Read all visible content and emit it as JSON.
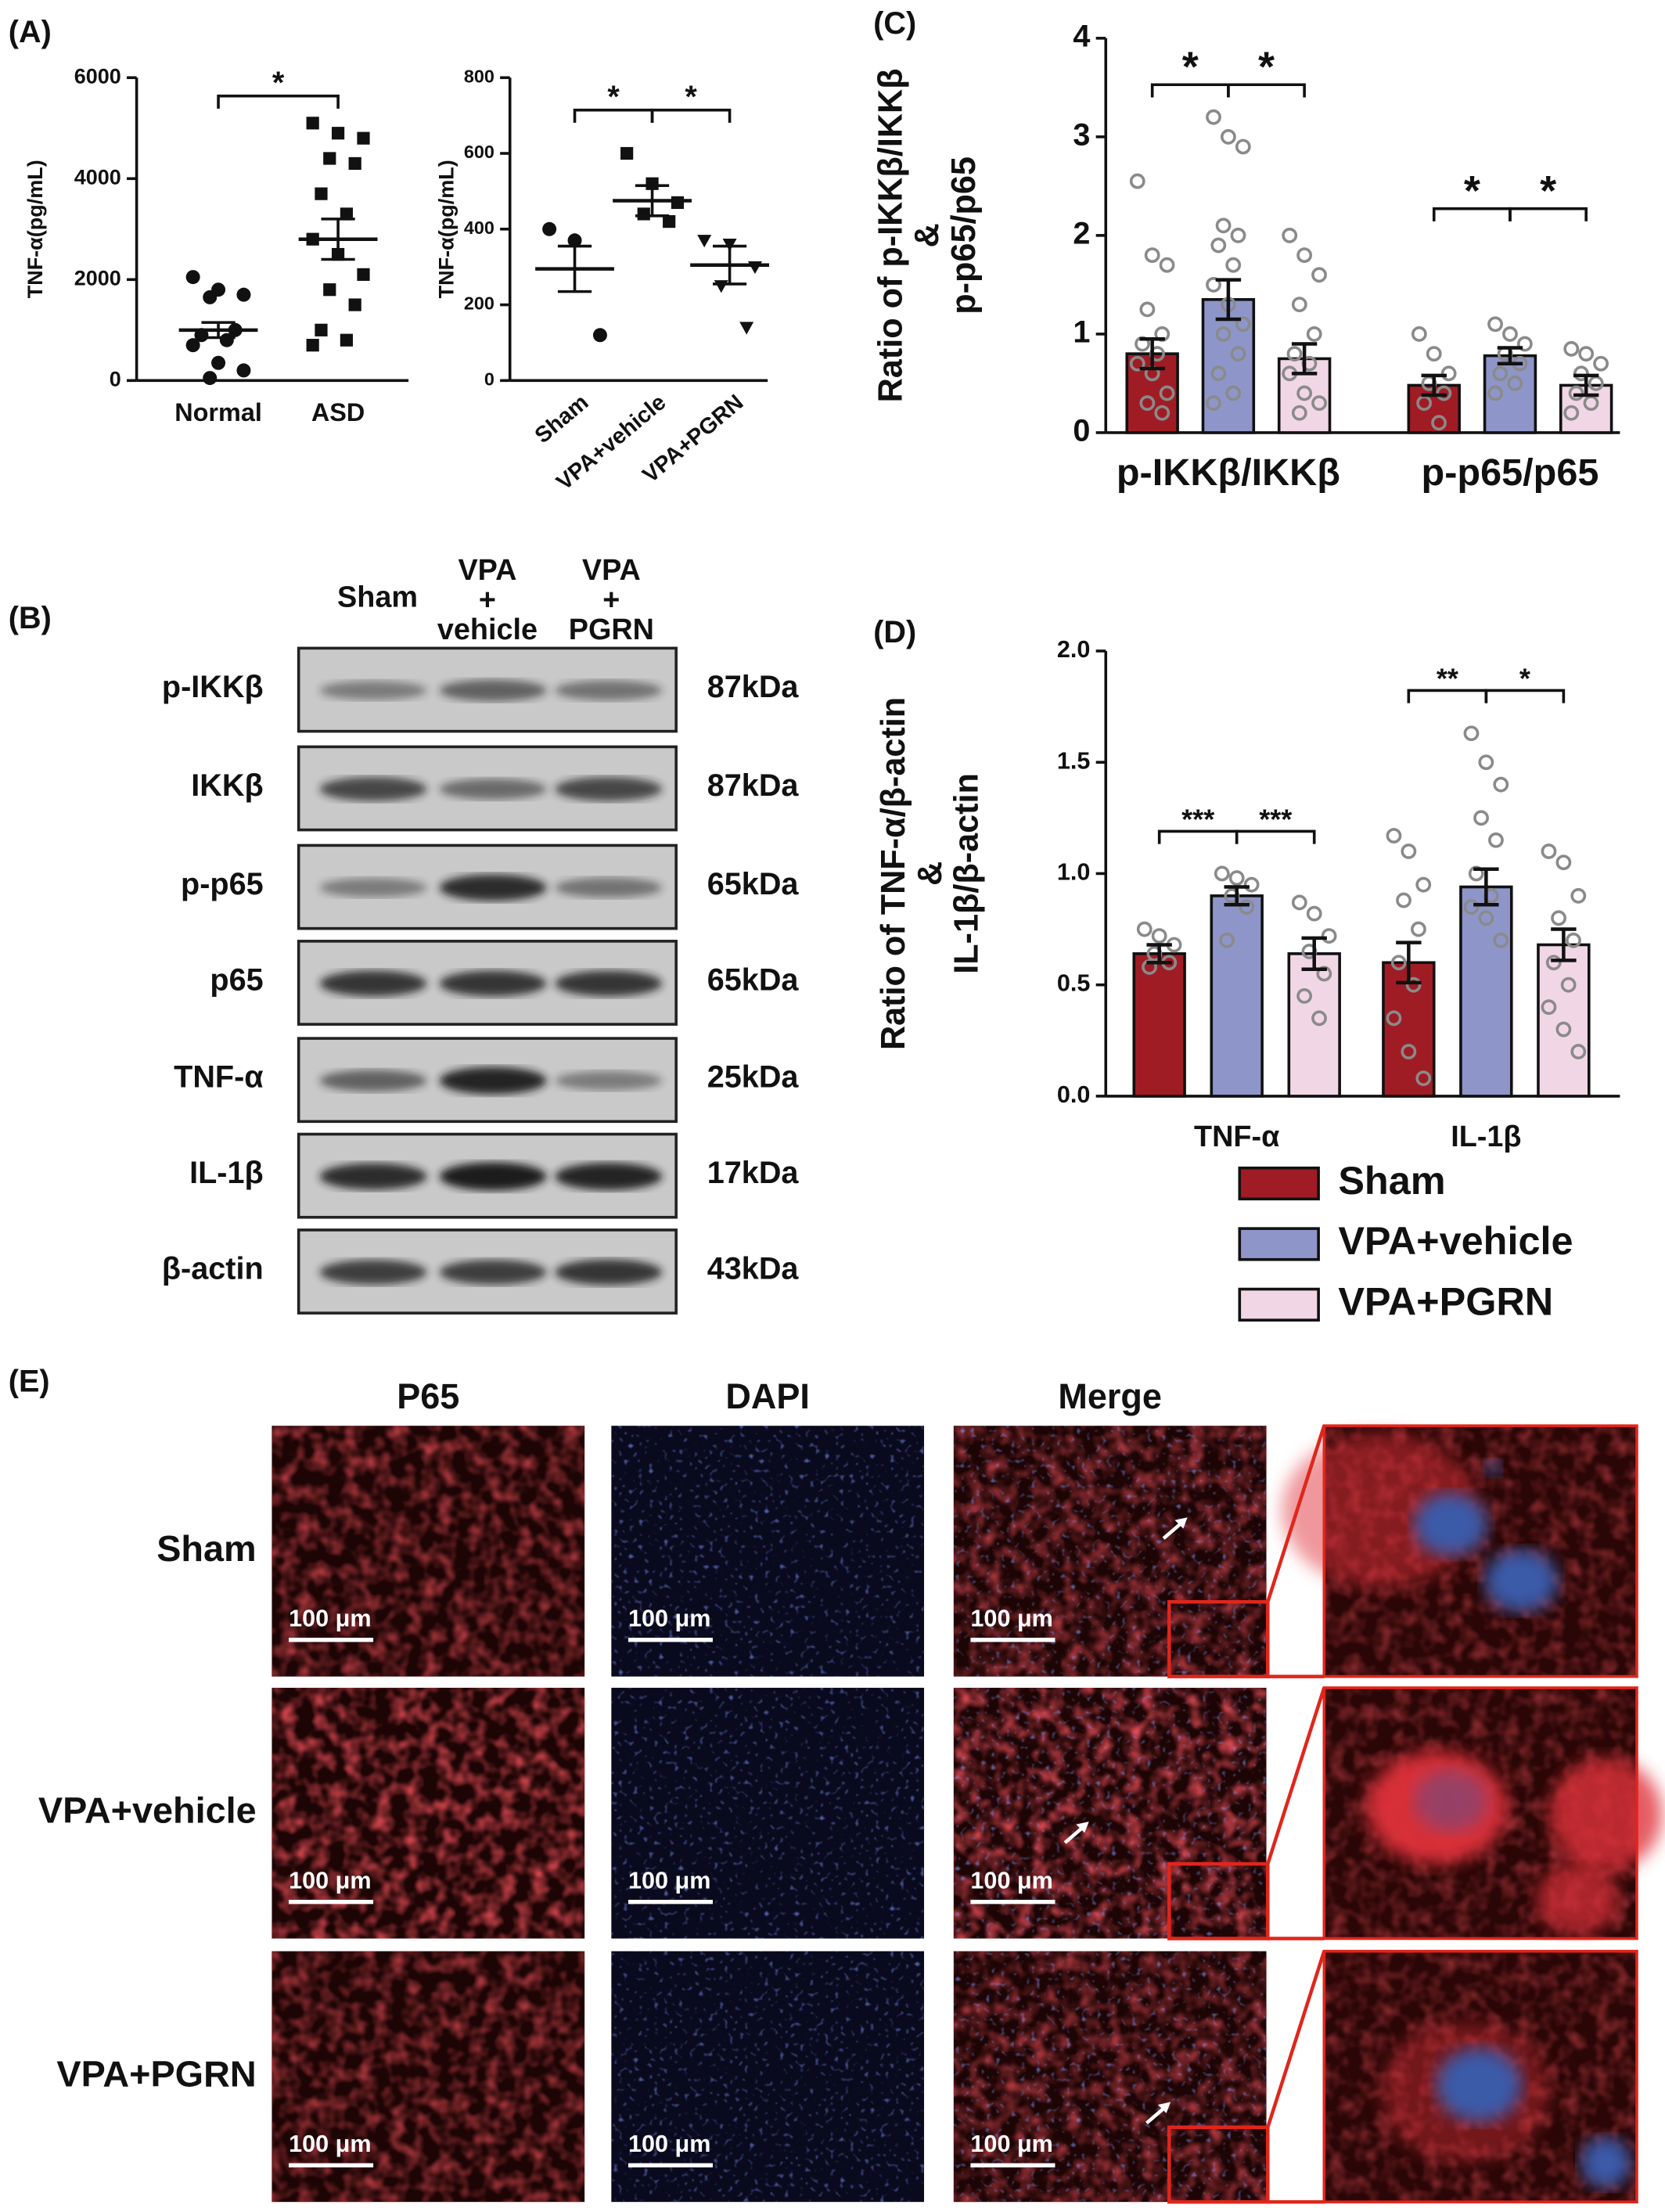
{
  "panel_labels": [
    "(A)",
    "(B)",
    "(C)",
    "(D)",
    "(E)"
  ],
  "chart_data": [
    {
      "type": "scatter",
      "ylabel": "TNF-α(pg/mL)",
      "categories": [
        "Normal",
        "ASD"
      ],
      "ylim": [
        0,
        6000
      ],
      "yticks": [
        0,
        2000,
        4000,
        6000
      ],
      "markers": [
        "circle",
        "square"
      ],
      "color": "#111111",
      "values": [
        1000,
        2800
      ],
      "errors": [
        150,
        400
      ],
      "points": [
        [
          2050,
          1800,
          1700,
          1650,
          1000,
          900,
          800,
          700,
          350,
          200,
          50
        ],
        [
          5100,
          4900,
          4800,
          4400,
          4300,
          3700,
          3300,
          2800,
          2500,
          2100,
          1800,
          1500,
          1000,
          800,
          700
        ]
      ],
      "comparisons": [
        {
          "label": "*",
          "between": [
            0,
            1
          ]
        }
      ]
    },
    {
      "type": "scatter",
      "ylabel": "TNF-α(pg/mL)",
      "categories": [
        "Sham",
        "VPA+vehicle",
        "VPA+PGRN"
      ],
      "ylim": [
        0,
        800
      ],
      "yticks": [
        0,
        200,
        400,
        600,
        800
      ],
      "markers": [
        "circle",
        "square",
        "triangle"
      ],
      "color": "#111111",
      "values": [
        295,
        475,
        305
      ],
      "errors": [
        60,
        40,
        50
      ],
      "points": [
        [
          400,
          370,
          120
        ],
        [
          600,
          520,
          470,
          440,
          420
        ],
        [
          370,
          360,
          300,
          250,
          140
        ]
      ],
      "comparisons": [
        {
          "label": "*",
          "between": [
            0,
            1
          ]
        },
        {
          "label": "*",
          "between": [
            1,
            2
          ]
        }
      ]
    },
    {
      "type": "bar",
      "ylabel": [
        "Ratio of p-IKKβ/IKKβ",
        "&",
        "p-p65/p65"
      ],
      "categories": [
        "p-IKKβ/IKKβ",
        "p-p65/p65"
      ],
      "ylim": [
        0,
        4
      ],
      "yticks": [
        0,
        1,
        2,
        3,
        4
      ],
      "point_color": "#8a8a8a",
      "series": [
        {
          "color": "#a01c24",
          "values": [
            0.8,
            0.48
          ],
          "errors": [
            0.15,
            0.1
          ],
          "points": [
            [
              2.55,
              1.8,
              1.7,
              1.25,
              1.0,
              0.9,
              0.8,
              0.7,
              0.6,
              0.4,
              0.3,
              0.2
            ],
            [
              1.0,
              0.8,
              0.6,
              0.5,
              0.4,
              0.3,
              0.1
            ]
          ]
        },
        {
          "color": "#8e96c9",
          "values": [
            1.35,
            0.78
          ],
          "errors": [
            0.2,
            0.08
          ],
          "points": [
            [
              3.2,
              3.0,
              2.9,
              2.1,
              2.0,
              1.9,
              1.7,
              1.5,
              1.3,
              1.1,
              1.0,
              0.8,
              0.6,
              0.4,
              0.3
            ],
            [
              1.1,
              1.0,
              0.9,
              0.8,
              0.7,
              0.6,
              0.5,
              0.4
            ]
          ]
        },
        {
          "color": "#f1d7e5",
          "values": [
            0.75,
            0.48
          ],
          "errors": [
            0.15,
            0.1
          ],
          "points": [
            [
              2.0,
              1.8,
              1.6,
              1.3,
              1.0,
              0.8,
              0.7,
              0.6,
              0.4,
              0.3,
              0.2
            ],
            [
              0.85,
              0.8,
              0.7,
              0.6,
              0.5,
              0.4,
              0.3,
              0.2
            ]
          ]
        }
      ],
      "comparisons": [
        {
          "label": "*",
          "category": 0,
          "between": [
            0,
            1
          ]
        },
        {
          "label": "*",
          "category": 0,
          "between": [
            1,
            2
          ]
        },
        {
          "label": "*",
          "category": 1,
          "between": [
            0,
            1
          ]
        },
        {
          "label": "*",
          "category": 1,
          "between": [
            1,
            2
          ]
        }
      ]
    },
    {
      "type": "bar",
      "ylabel": [
        "Ratio of TNF-α/β-actin",
        "&",
        "IL-1β/β-actin"
      ],
      "categories": [
        "TNF-α",
        "IL-1β"
      ],
      "ylim": [
        0,
        2
      ],
      "yticks": [
        {
          "value": 0,
          "label": "0.0"
        },
        0.5,
        {
          "value": 1,
          "label": "1.0"
        },
        1.5,
        {
          "value": 2,
          "label": "2.0"
        }
      ],
      "point_color": "#8a8a8a",
      "legend": "below",
      "series": [
        {
          "name": "Sham",
          "color": "#a01c24",
          "values": [
            0.64,
            0.6
          ],
          "errors": [
            0.04,
            0.09
          ],
          "points": [
            [
              0.75,
              0.72,
              0.68,
              0.64,
              0.6,
              0.58
            ],
            [
              1.17,
              1.1,
              0.95,
              0.88,
              0.75,
              0.6,
              0.5,
              0.35,
              0.2,
              0.08
            ]
          ]
        },
        {
          "name": "VPA+vehicle",
          "color": "#8e96c9",
          "values": [
            0.9,
            0.94
          ],
          "errors": [
            0.04,
            0.08
          ],
          "points": [
            [
              1.0,
              0.98,
              0.95,
              0.9,
              0.85,
              0.7
            ],
            [
              1.63,
              1.5,
              1.4,
              1.25,
              1.15,
              1.0,
              0.9,
              0.85,
              0.8,
              0.7
            ]
          ]
        },
        {
          "name": "VPA+PGRN",
          "color": "#f1d7e5",
          "values": [
            0.64,
            0.68
          ],
          "errors": [
            0.07,
            0.07
          ],
          "points": [
            [
              0.87,
              0.82,
              0.72,
              0.65,
              0.55,
              0.45,
              0.35
            ],
            [
              1.1,
              1.05,
              0.9,
              0.8,
              0.7,
              0.6,
              0.5,
              0.4,
              0.3,
              0.2
            ]
          ]
        }
      ],
      "comparisons": [
        {
          "label": "***",
          "category": 0,
          "between": [
            0,
            1
          ]
        },
        {
          "label": "***",
          "category": 0,
          "between": [
            1,
            2
          ]
        },
        {
          "label": "**",
          "category": 1,
          "between": [
            0,
            1
          ]
        },
        {
          "label": "*",
          "category": 1,
          "between": [
            1,
            2
          ]
        }
      ]
    }
  ],
  "blot": {
    "columns": [
      [
        "Sham"
      ],
      [
        "VPA",
        "+",
        "vehicle"
      ],
      [
        "VPA",
        "+",
        "PGRN"
      ]
    ],
    "rows": [
      {
        "label": "p-IKKβ",
        "size": "87kDa"
      },
      {
        "label": "IKKβ",
        "size": "87kDa"
      },
      {
        "label": "p-p65",
        "size": "65kDa"
      },
      {
        "label": "p65",
        "size": "65kDa"
      },
      {
        "label": "TNF-α",
        "size": "25kDa"
      },
      {
        "label": "IL-1β",
        "size": "17kDa"
      },
      {
        "label": "β-actin",
        "size": "43kDa"
      }
    ]
  },
  "micrographs": {
    "columns": [
      "P65",
      "DAPI",
      "Merge"
    ],
    "rows": [
      "Sham",
      "VPA+vehicle",
      "VPA+PGRN"
    ],
    "scale_bar": "100 μm"
  }
}
